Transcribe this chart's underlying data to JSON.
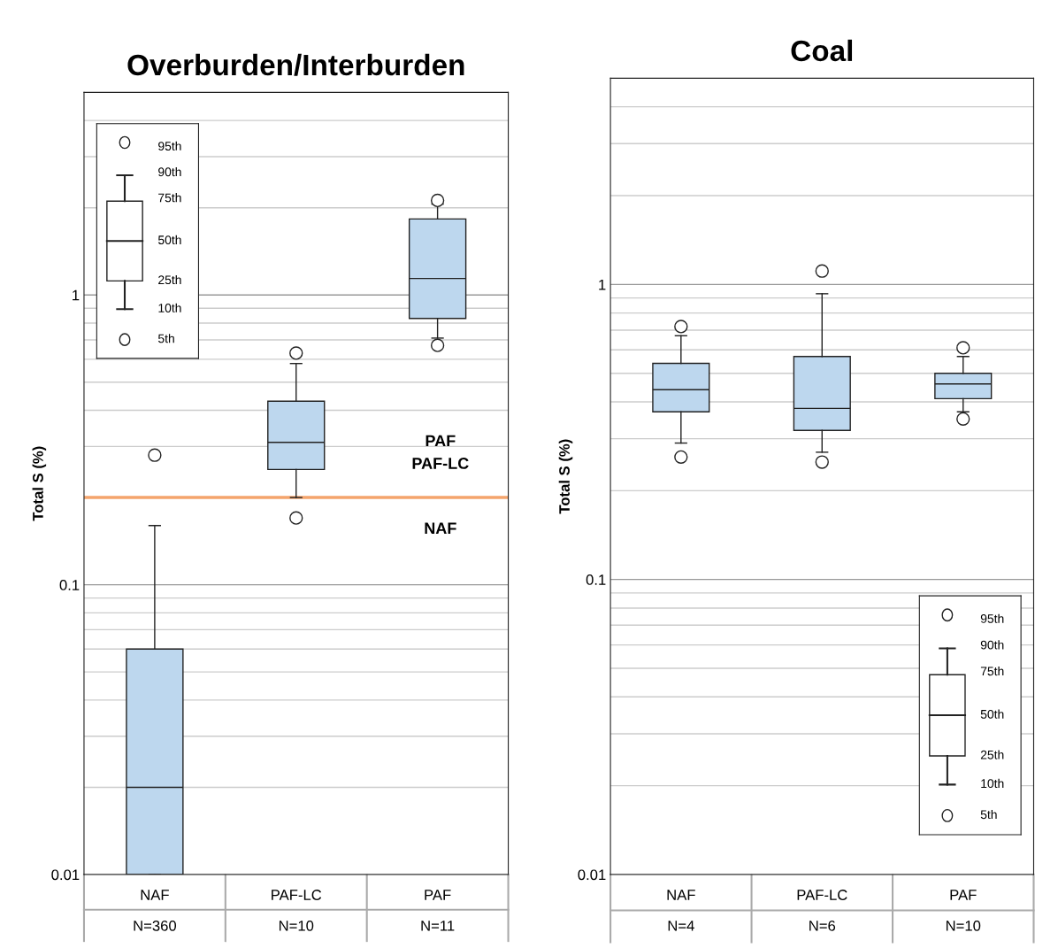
{
  "chart_data": [
    {
      "type": "box",
      "title": "Overburden/Interburden",
      "ylabel": "Total S (%)",
      "categories": [
        "NAF\nN=360",
        "PAF-LC\nN=10",
        "PAF\nN=11"
      ],
      "log": true,
      "ylim": [
        0.01,
        5
      ],
      "yticks": [
        0.01,
        0.1,
        1
      ],
      "grid": "y",
      "series": [
        {
          "color": "#bdd7ee",
          "boxes": [
            {
              "low": 0.01,
              "q1": 0.01,
              "median": 0.02,
              "q3": 0.06,
              "high": 0.16,
              "outliers": [
                0.28
              ]
            },
            {
              "low": 0.2,
              "q1": 0.25,
              "median": 0.31,
              "q3": 0.43,
              "high": 0.58,
              "outliers": [
                0.17,
                0.63
              ]
            },
            {
              "low": 0.71,
              "q1": 0.83,
              "median": 1.14,
              "q3": 1.83,
              "high": 2.06,
              "outliers": [
                0.67,
                2.12
              ]
            }
          ]
        }
      ],
      "ref_lines": [
        {
          "axis": "y",
          "value": 0.2,
          "color": "#f4a46c"
        }
      ],
      "annotations": [
        "95th",
        "90th",
        "75th",
        "50th",
        "25th",
        "10th",
        "5th",
        "PAF",
        "PAF-LC",
        "NAF"
      ]
    },
    {
      "type": "box",
      "title": "Coal",
      "ylabel": "Total S (%)",
      "categories": [
        "NAF\nN=4",
        "PAF-LC\nN=6",
        "PAF\nN=10"
      ],
      "log": true,
      "ylim": [
        0.01,
        5
      ],
      "yticks": [
        0.01,
        0.1,
        1
      ],
      "grid": "y",
      "series": [
        {
          "color": "#bdd7ee",
          "boxes": [
            {
              "low": 0.29,
              "q1": 0.37,
              "median": 0.44,
              "q3": 0.54,
              "high": 0.67,
              "outliers": [
                0.26,
                0.72
              ]
            },
            {
              "low": 0.27,
              "q1": 0.32,
              "median": 0.38,
              "q3": 0.57,
              "high": 0.93,
              "outliers": [
                0.25,
                1.11
              ]
            },
            {
              "low": 0.37,
              "q1": 0.41,
              "median": 0.46,
              "q3": 0.5,
              "high": 0.57,
              "outliers": [
                0.35,
                0.61
              ]
            }
          ]
        }
      ],
      "annotations": [
        "95th",
        "90th",
        "75th",
        "50th",
        "25th",
        "10th",
        "5th"
      ]
    }
  ]
}
